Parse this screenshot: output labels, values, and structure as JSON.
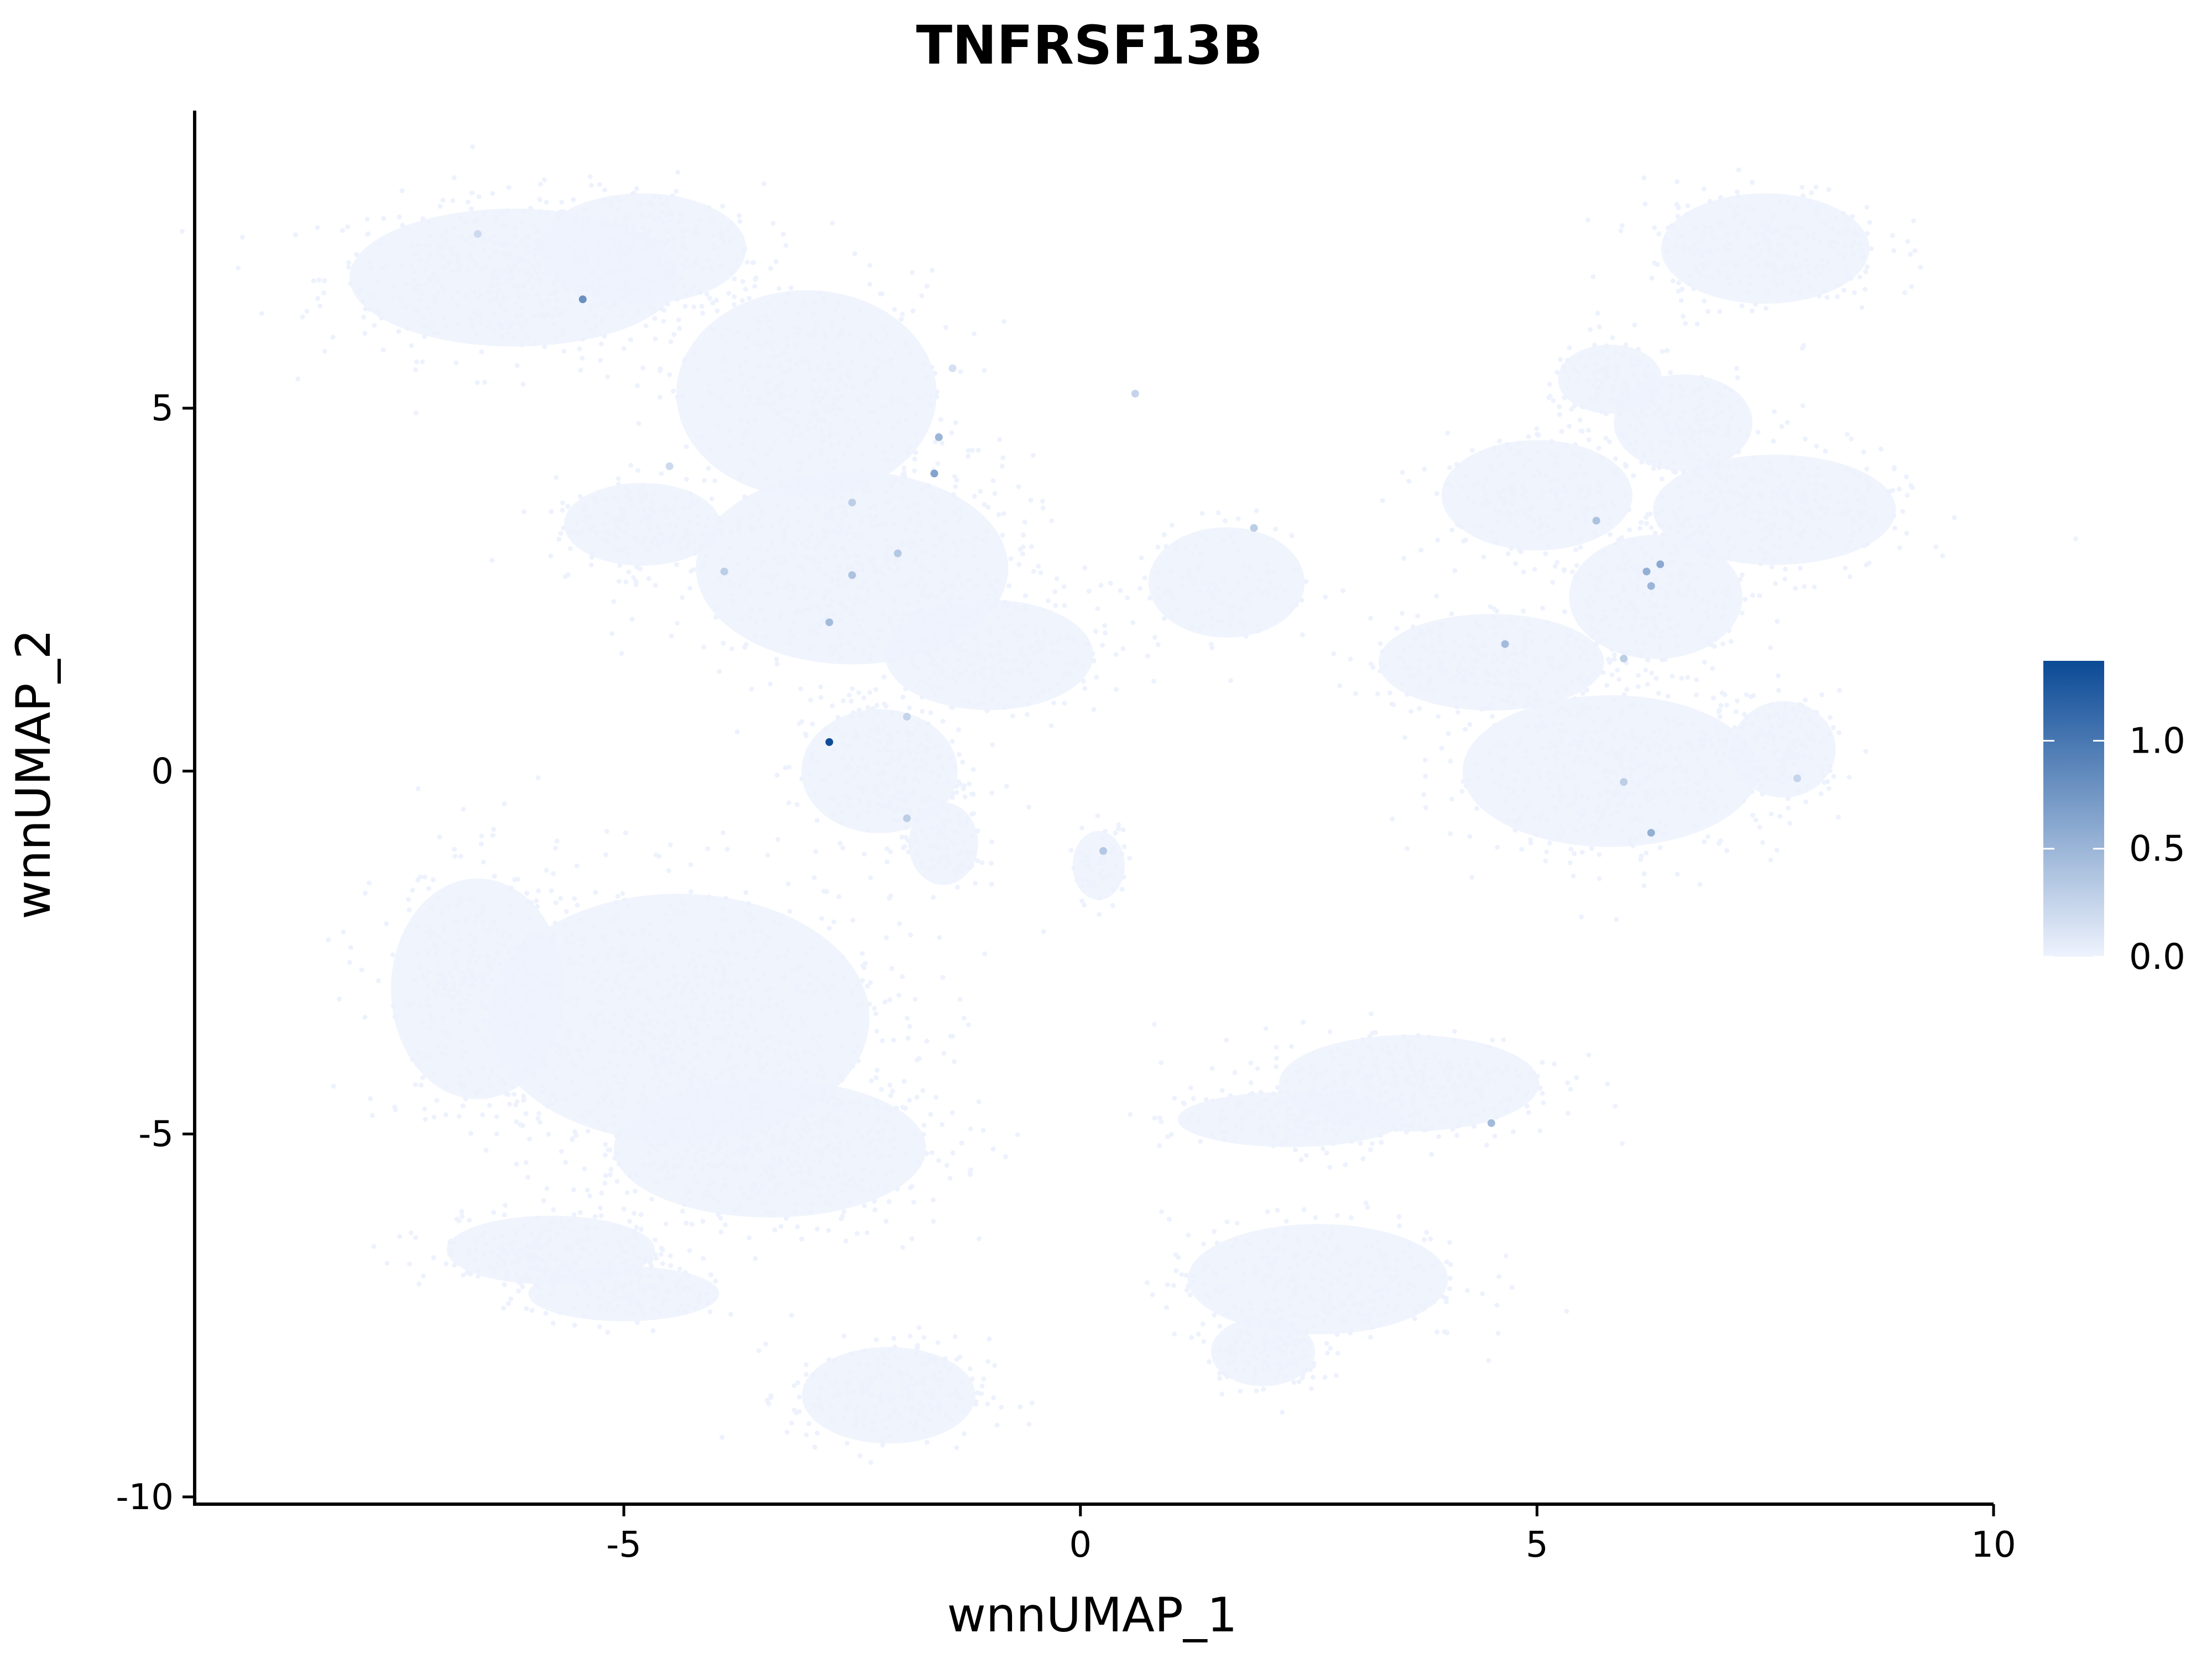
{
  "chart_data": {
    "type": "scatter",
    "title": "TNFRSF13B",
    "xlabel": "wnnUMAP_1",
    "ylabel": "wnnUMAP_2",
    "xlim": [
      -9.7,
      10
    ],
    "ylim": [
      -10.1,
      9.1
    ],
    "x_ticks": [
      -5,
      0,
      5,
      10
    ],
    "x_tick_labels": [
      "-5",
      "0",
      "5",
      "10"
    ],
    "y_ticks": [
      5,
      0,
      -5,
      -10
    ],
    "y_tick_labels": [
      "5",
      "0",
      "-5",
      "-10"
    ],
    "grid": false,
    "background_color": "#edf2fd",
    "colorbar": {
      "low_color": "#eef3fd",
      "high_color": "#0b4a96",
      "range": [
        0,
        1.37
      ],
      "ticks": [
        0.0,
        0.5,
        1.0
      ],
      "tick_labels": [
        "0.0",
        "0.5",
        "1.0"
      ],
      "placement": "right"
    },
    "background_clusters": [
      {
        "cx": -6.2,
        "cy": 6.8,
        "rx": 1.9,
        "ry": 1.0,
        "n": 480
      },
      {
        "cx": -4.8,
        "cy": 7.2,
        "rx": 1.2,
        "ry": 0.8,
        "n": 250
      },
      {
        "cx": -3.0,
        "cy": 5.2,
        "rx": 1.5,
        "ry": 1.5,
        "n": 380
      },
      {
        "cx": -2.5,
        "cy": 2.8,
        "rx": 1.8,
        "ry": 1.4,
        "n": 520
      },
      {
        "cx": -4.8,
        "cy": 3.4,
        "rx": 0.9,
        "ry": 0.6,
        "n": 160
      },
      {
        "cx": -1.0,
        "cy": 1.6,
        "rx": 1.2,
        "ry": 0.8,
        "n": 260
      },
      {
        "cx": -2.2,
        "cy": 0.0,
        "rx": 0.9,
        "ry": 0.9,
        "n": 220
      },
      {
        "cx": -1.5,
        "cy": -1.0,
        "rx": 0.4,
        "ry": 0.6,
        "n": 90
      },
      {
        "cx": 1.6,
        "cy": 2.6,
        "rx": 0.9,
        "ry": 0.8,
        "n": 130
      },
      {
        "cx": 7.5,
        "cy": 7.2,
        "rx": 1.2,
        "ry": 0.8,
        "n": 280
      },
      {
        "cx": 5.8,
        "cy": 5.4,
        "rx": 0.6,
        "ry": 0.5,
        "n": 100
      },
      {
        "cx": 6.6,
        "cy": 4.8,
        "rx": 0.8,
        "ry": 0.7,
        "n": 160
      },
      {
        "cx": 5.0,
        "cy": 3.8,
        "rx": 1.1,
        "ry": 0.8,
        "n": 220
      },
      {
        "cx": 7.6,
        "cy": 3.6,
        "rx": 1.4,
        "ry": 0.8,
        "n": 300
      },
      {
        "cx": 6.3,
        "cy": 2.4,
        "rx": 1.0,
        "ry": 0.9,
        "n": 220
      },
      {
        "cx": 4.5,
        "cy": 1.5,
        "rx": 1.3,
        "ry": 0.7,
        "n": 240
      },
      {
        "cx": 5.8,
        "cy": 0.0,
        "rx": 1.7,
        "ry": 1.1,
        "n": 480
      },
      {
        "cx": 7.7,
        "cy": 0.3,
        "rx": 0.6,
        "ry": 0.7,
        "n": 160
      },
      {
        "cx": 0.2,
        "cy": -1.3,
        "rx": 0.3,
        "ry": 0.5,
        "n": 60
      },
      {
        "cx": -6.6,
        "cy": -3.0,
        "rx": 1.0,
        "ry": 1.6,
        "n": 300
      },
      {
        "cx": -4.4,
        "cy": -3.4,
        "rx": 2.2,
        "ry": 1.8,
        "n": 800
      },
      {
        "cx": -3.4,
        "cy": -5.2,
        "rx": 1.8,
        "ry": 1.0,
        "n": 500
      },
      {
        "cx": -5.8,
        "cy": -6.6,
        "rx": 1.2,
        "ry": 0.5,
        "n": 220
      },
      {
        "cx": -5.0,
        "cy": -7.2,
        "rx": 1.1,
        "ry": 0.4,
        "n": 150
      },
      {
        "cx": -2.1,
        "cy": -8.6,
        "rx": 1.0,
        "ry": 0.7,
        "n": 230
      },
      {
        "cx": 3.6,
        "cy": -4.3,
        "rx": 1.5,
        "ry": 0.7,
        "n": 330
      },
      {
        "cx": 2.3,
        "cy": -4.8,
        "rx": 1.3,
        "ry": 0.4,
        "n": 160
      },
      {
        "cx": 2.6,
        "cy": -7.0,
        "rx": 1.5,
        "ry": 0.8,
        "n": 330
      },
      {
        "cx": 2.0,
        "cy": -8.0,
        "rx": 0.6,
        "ry": 0.5,
        "n": 120
      }
    ],
    "expressing_points": [
      {
        "x": -2.75,
        "y": 0.4,
        "value": 1.35
      },
      {
        "x": -5.45,
        "y": 6.5,
        "value": 0.8
      },
      {
        "x": -1.6,
        "y": 4.1,
        "value": 0.65
      },
      {
        "x": -1.55,
        "y": 4.6,
        "value": 0.5
      },
      {
        "x": -2.75,
        "y": 2.05,
        "value": 0.45
      },
      {
        "x": -2.5,
        "y": 2.7,
        "value": 0.4
      },
      {
        "x": -2.0,
        "y": 3.0,
        "value": 0.35
      },
      {
        "x": -3.9,
        "y": 2.75,
        "value": 0.3
      },
      {
        "x": -2.5,
        "y": 3.7,
        "value": 0.3
      },
      {
        "x": -1.9,
        "y": 0.75,
        "value": 0.25
      },
      {
        "x": -1.9,
        "y": -0.65,
        "value": 0.3
      },
      {
        "x": -6.6,
        "y": 7.4,
        "value": 0.2
      },
      {
        "x": -4.5,
        "y": 4.2,
        "value": 0.2
      },
      {
        "x": -1.4,
        "y": 5.55,
        "value": 0.15
      },
      {
        "x": 0.25,
        "y": -1.1,
        "value": 0.35
      },
      {
        "x": 0.6,
        "y": 5.2,
        "value": 0.25
      },
      {
        "x": 1.9,
        "y": 3.35,
        "value": 0.3
      },
      {
        "x": 4.65,
        "y": 1.75,
        "value": 0.45
      },
      {
        "x": 5.65,
        "y": 3.45,
        "value": 0.4
      },
      {
        "x": 6.2,
        "y": 2.75,
        "value": 0.55
      },
      {
        "x": 6.35,
        "y": 2.85,
        "value": 0.6
      },
      {
        "x": 6.25,
        "y": 2.55,
        "value": 0.5
      },
      {
        "x": 5.95,
        "y": 1.55,
        "value": 0.3
      },
      {
        "x": 6.25,
        "y": -0.85,
        "value": 0.55
      },
      {
        "x": 5.95,
        "y": -0.15,
        "value": 0.3
      },
      {
        "x": 7.85,
        "y": -0.1,
        "value": 0.25
      },
      {
        "x": 4.5,
        "y": -4.85,
        "value": 0.45
      }
    ]
  }
}
